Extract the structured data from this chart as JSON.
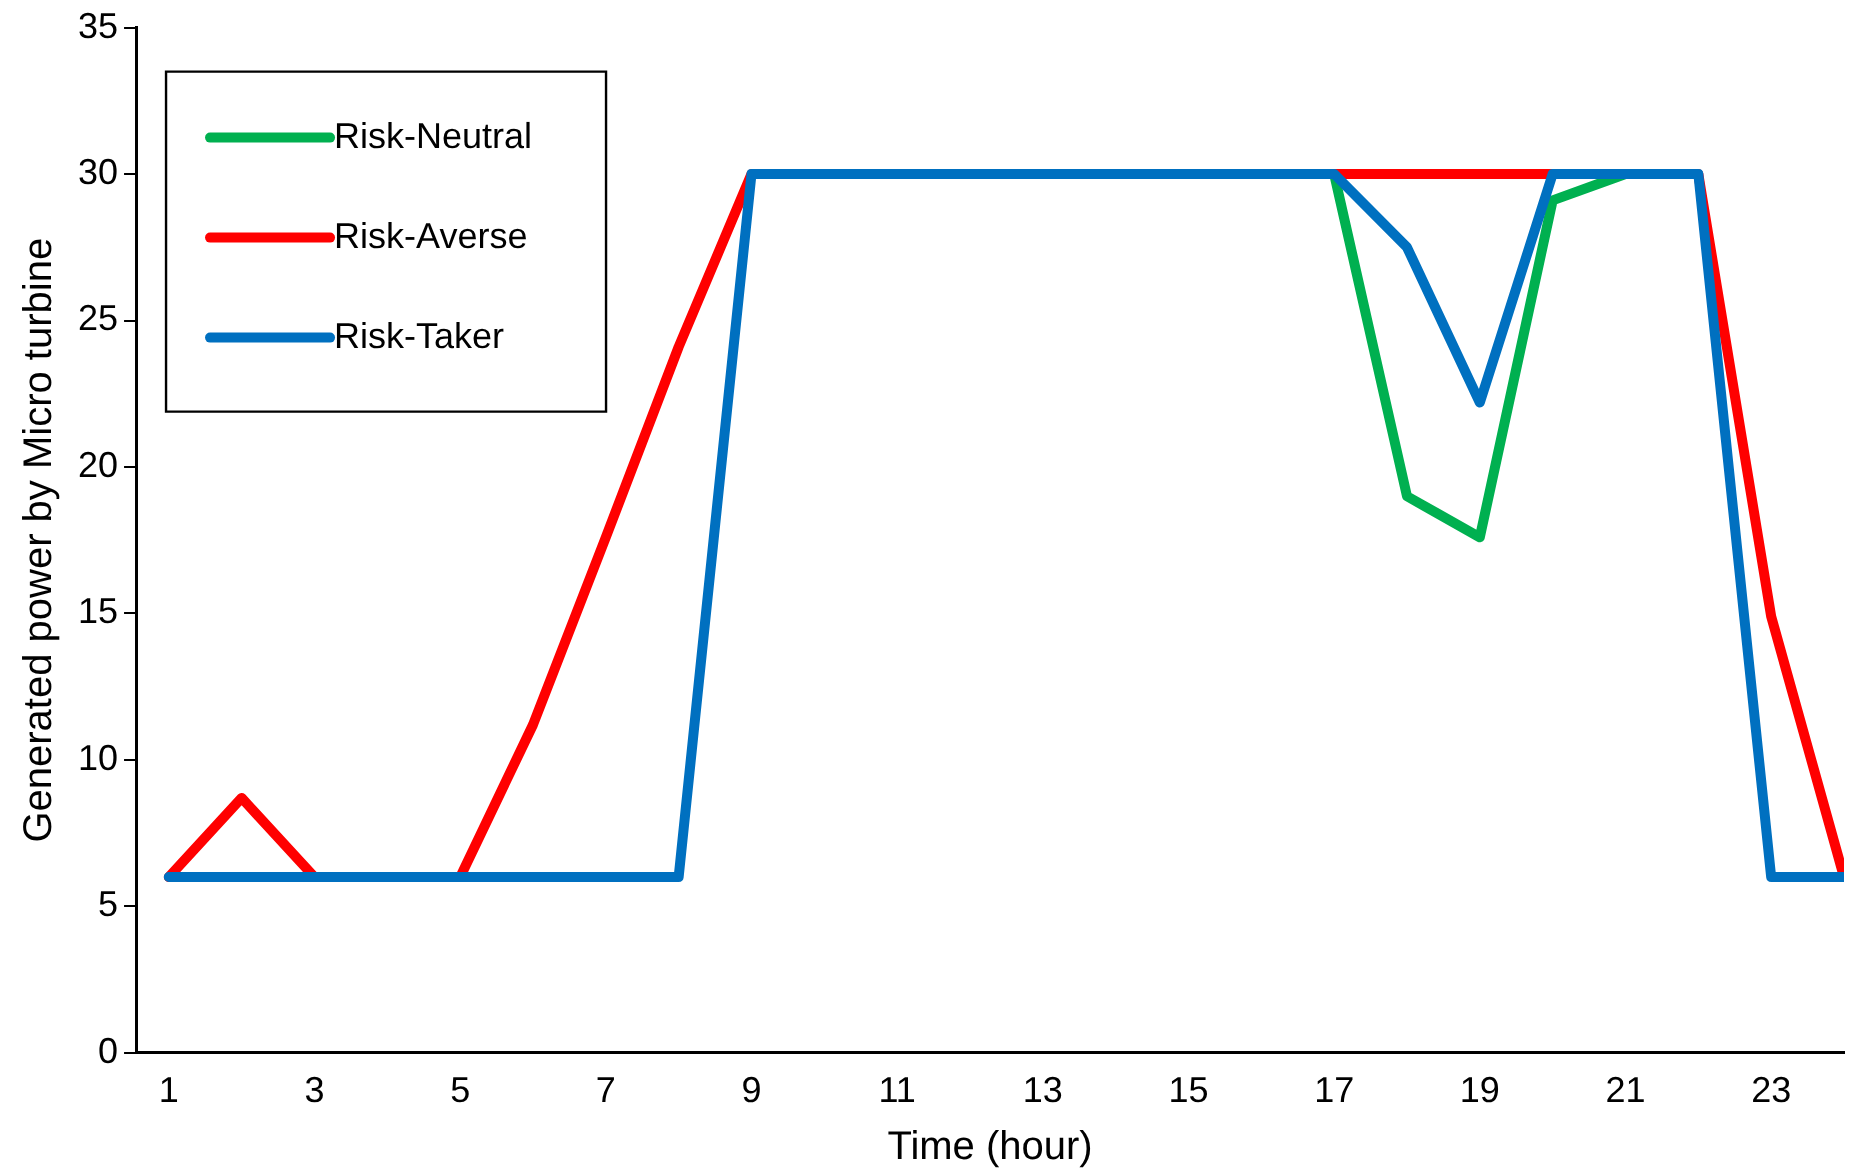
{
  "chart_data": {
    "type": "line",
    "xlabel": "Time (hour)",
    "ylabel": "Generated power by Micro turbine",
    "x": [
      1,
      2,
      3,
      4,
      5,
      6,
      7,
      8,
      9,
      10,
      11,
      12,
      13,
      14,
      15,
      16,
      17,
      18,
      19,
      20,
      21,
      22,
      23,
      24
    ],
    "xlim": [
      0.55,
      24
    ],
    "xticks": [
      1,
      3,
      5,
      7,
      9,
      11,
      13,
      15,
      17,
      19,
      21,
      23
    ],
    "ylim": [
      0,
      35
    ],
    "yticks": [
      0,
      5,
      10,
      15,
      20,
      25,
      30,
      35
    ],
    "grid": false,
    "legend": "top left",
    "marker": "none",
    "line_style": "solid",
    "series": [
      {
        "name": "Risk-Neutral",
        "color": "#00b050",
        "values": [
          null,
          null,
          null,
          null,
          null,
          null,
          null,
          null,
          null,
          null,
          null,
          null,
          null,
          null,
          null,
          null,
          30,
          19.0,
          17.6,
          29.1,
          30,
          null,
          null,
          null
        ]
      },
      {
        "name": "Risk-Averse",
        "color": "#ff0000",
        "values": [
          6,
          8.7,
          6,
          null,
          6,
          11.2,
          17.6,
          24.1,
          30,
          null,
          null,
          null,
          null,
          null,
          null,
          null,
          30,
          30,
          30,
          30,
          null,
          30,
          14.9,
          6
        ]
      },
      {
        "name": "Risk-Taker",
        "color": "#0070c0",
        "values": [
          6,
          6,
          6,
          6,
          6,
          6,
          6,
          6,
          30,
          30,
          30,
          30,
          30,
          30,
          30,
          30,
          30,
          27.5,
          22.2,
          30,
          30,
          30,
          6,
          6
        ]
      }
    ]
  }
}
